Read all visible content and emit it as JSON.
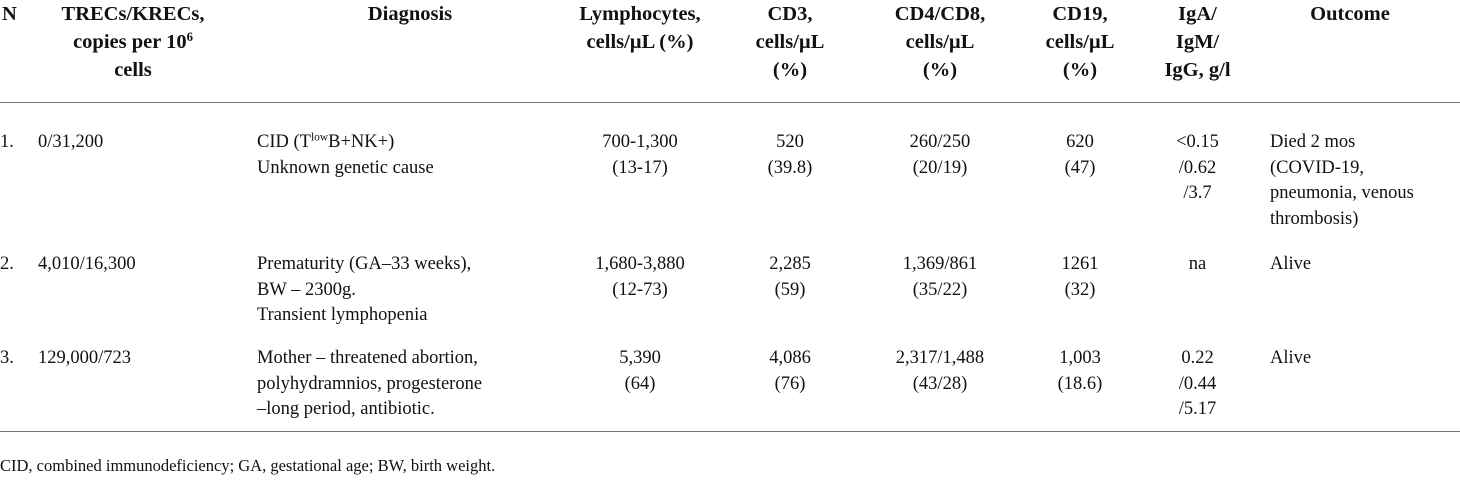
{
  "headers": {
    "n": "N",
    "trecs_l1": "TRECs/KRECs,",
    "trecs_l2": "copies per 10",
    "trecs_sup": "6",
    "trecs_l3": "cells",
    "diagnosis": "Diagnosis",
    "lymph_l1": "Lymphocytes,",
    "lymph_l2": "cells/µL (%)",
    "cd3_l1": "CD3,",
    "cd3_l2": "cells/µL",
    "cd3_l3": "(%)",
    "cd48_l1": "CD4/CD8,",
    "cd48_l2": "cells/µL",
    "cd48_l3": "(%)",
    "cd19_l1": "CD19,",
    "cd19_l2": "cells/µL",
    "cd19_l3": "(%)",
    "ig_l1": "IgA/",
    "ig_l2": "IgM/",
    "ig_l3": "IgG, g/l",
    "outcome": "Outcome"
  },
  "rows": [
    {
      "n": "1.",
      "trecs": "0/31,200",
      "diag_pre": "CID (T",
      "diag_sup": "low",
      "diag_post": "B+NK+)",
      "diag_l2": "Unknown genetic cause",
      "diag_l3": "",
      "lymph_l1": "700-1,300",
      "lymph_l2": "(13-17)",
      "cd3_l1": "520",
      "cd3_l2": "(39.8)",
      "cd48_l1": "260/250",
      "cd48_l2": "(20/19)",
      "cd19_l1": "620",
      "cd19_l2": "(47)",
      "ig_l1": "<0.15",
      "ig_l2": "/0.62",
      "ig_l3": "/3.7",
      "out_l1": "Died 2 mos",
      "out_l2": "(COVID-19,",
      "out_l3": "pneumonia, venous",
      "out_l4": "thrombosis)"
    },
    {
      "n": "2.",
      "trecs": "4,010/16,300",
      "diag_l1": "Prematurity (GA–33 weeks),",
      "diag_l2": "BW – 2300g.",
      "diag_l3": "Transient lymphopenia",
      "lymph_l1": "1,680-3,880",
      "lymph_l2": "(12-73)",
      "cd3_l1": "2,285",
      "cd3_l2": "(59)",
      "cd48_l1": "1,369/861",
      "cd48_l2": "(35/22)",
      "cd19_l1": "1261",
      "cd19_l2": "(32)",
      "ig_l1": "na",
      "out_l1": "Alive"
    },
    {
      "n": "3.",
      "trecs": "129,000/723",
      "diag_l1": "Mother – threatened abortion,",
      "diag_l2": "polyhydramnios, progesterone",
      "diag_l3": "–long period, antibiotic.",
      "lymph_l1": "5,390",
      "lymph_l2": "(64)",
      "cd3_l1": "4,086",
      "cd3_l2": "(76)",
      "cd48_l1": "2,317/1,488",
      "cd48_l2": "(43/28)",
      "cd19_l1": "1,003",
      "cd19_l2": "(18.6)",
      "ig_l1": "0.22",
      "ig_l2": "/0.44",
      "ig_l3": "/5.17",
      "out_l1": "Alive"
    }
  ],
  "footnote": "CID, combined immunodeficiency; GA, gestational age; BW, birth weight."
}
